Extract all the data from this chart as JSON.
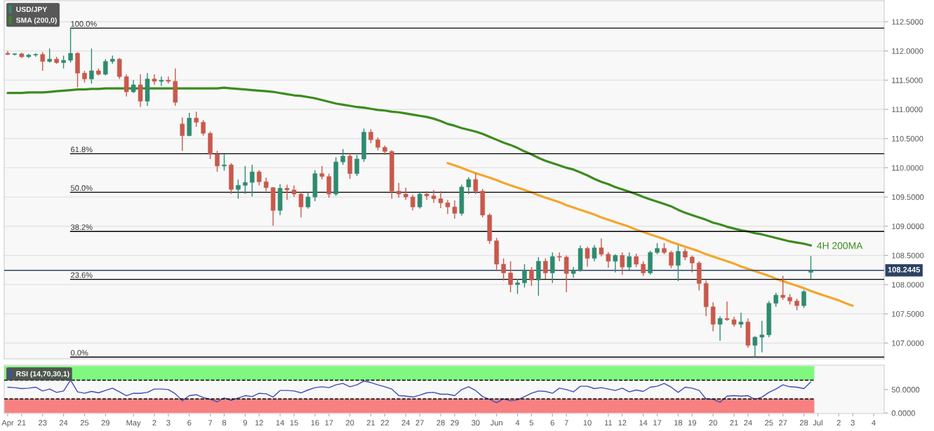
{
  "chart_data": [
    {
      "type": "candlestick",
      "legend": "top left",
      "grid": "y",
      "categories": [
        null,
        null,
        null,
        null,
        null,
        null,
        null,
        null,
        null,
        null,
        null,
        null,
        null,
        null,
        null,
        null,
        null,
        null,
        null,
        null,
        null,
        null,
        null,
        null,
        null,
        null,
        null,
        null,
        null,
        null,
        null,
        null,
        null,
        null,
        null,
        null,
        null,
        null,
        null,
        null,
        null,
        null,
        null,
        null,
        null,
        null,
        null,
        null,
        null,
        null,
        null,
        null,
        null,
        null,
        null,
        null,
        null,
        null,
        null,
        null,
        null,
        null,
        null,
        null,
        null,
        null,
        null,
        null,
        null,
        null,
        null,
        null,
        null,
        null,
        null,
        null,
        null,
        null,
        null,
        null,
        null,
        null,
        null,
        null,
        null,
        null,
        null,
        null,
        null,
        null,
        null,
        null,
        null,
        null,
        null,
        null,
        null,
        null,
        null,
        null,
        null,
        null,
        null,
        null,
        null,
        null,
        null,
        null,
        null,
        null,
        null,
        null,
        null,
        null,
        null,
        null,
        null,
        null,
        null,
        null,
        null,
        null,
        null,
        null,
        null,
        null
      ],
      "ylim": [
        106.73,
        112.86
      ],
      "yticks": [
        {
          "value": 107.0,
          "label": "107.0000"
        },
        {
          "value": 107.5,
          "label": "107.5000"
        },
        {
          "value": 108.0,
          "label": "108.0000"
        },
        {
          "value": 108.5,
          "label": "108.5000"
        },
        {
          "value": 109.0,
          "label": "109.0000"
        },
        {
          "value": 109.5,
          "label": "109.5000"
        },
        {
          "value": 110.0,
          "label": "110.0000"
        },
        {
          "value": 110.5,
          "label": "110.5000"
        },
        {
          "value": 111.0,
          "label": "111.0000"
        },
        {
          "value": 111.5,
          "label": "111.5000"
        },
        {
          "value": 112.0,
          "label": "112.0000"
        },
        {
          "value": 112.5,
          "label": "112.5000"
        }
      ],
      "series": [
        {
          "name": "USD/JPY",
          "type": "candlestick",
          "color": "#2e8b70",
          "ohlc": [
            [
              111.96,
              112.0,
              111.93,
              111.94
            ],
            [
              111.94,
              111.96,
              111.92,
              111.95
            ],
            [
              111.95,
              111.97,
              111.88,
              111.9
            ],
            [
              111.9,
              111.95,
              111.88,
              111.93
            ],
            [
              111.93,
              111.96,
              111.9,
              111.94
            ],
            [
              111.94,
              111.98,
              111.66,
              111.82
            ],
            [
              111.82,
              112.04,
              111.8,
              111.86
            ],
            [
              111.86,
              111.9,
              111.78,
              111.8
            ],
            [
              111.8,
              111.92,
              111.7,
              111.84
            ],
            [
              111.84,
              112.39,
              111.8,
              111.96
            ],
            [
              111.96,
              111.98,
              111.38,
              111.62
            ],
            [
              111.62,
              111.66,
              111.46,
              111.52
            ],
            [
              111.52,
              112.04,
              111.44,
              111.66
            ],
            [
              111.66,
              111.7,
              111.58,
              111.6
            ],
            [
              111.6,
              111.86,
              111.58,
              111.82
            ],
            [
              111.82,
              111.92,
              111.78,
              111.86
            ],
            [
              111.86,
              111.88,
              111.52,
              111.56
            ],
            [
              111.56,
              111.6,
              111.22,
              111.3
            ],
            [
              111.3,
              111.5,
              111.28,
              111.42
            ],
            [
              111.42,
              111.6,
              111.04,
              111.14
            ],
            [
              111.14,
              111.62,
              111.06,
              111.52
            ],
            [
              111.52,
              111.6,
              111.42,
              111.48
            ],
            [
              111.48,
              111.56,
              111.4,
              111.5
            ],
            [
              111.5,
              111.56,
              111.44,
              111.48
            ],
            [
              111.48,
              111.7,
              111.06,
              111.12
            ],
            [
              110.75,
              110.86,
              110.29,
              110.55
            ],
            [
              110.55,
              110.94,
              110.54,
              110.85
            ],
            [
              110.85,
              110.96,
              110.7,
              110.78
            ],
            [
              110.78,
              110.82,
              110.55,
              110.59
            ],
            [
              110.59,
              110.62,
              110.15,
              110.23
            ],
            [
              110.23,
              110.29,
              109.93,
              110.03
            ],
            [
              110.03,
              110.23,
              109.95,
              110.05
            ],
            [
              110.05,
              110.08,
              109.55,
              109.63
            ],
            [
              109.63,
              109.8,
              109.47,
              109.7
            ],
            [
              109.7,
              110.03,
              109.55,
              109.75
            ],
            [
              109.75,
              110.05,
              109.51,
              109.93
            ],
            [
              109.93,
              109.96,
              109.7,
              109.76
            ],
            [
              109.76,
              109.83,
              109.6,
              109.66
            ],
            [
              109.66,
              109.67,
              109.01,
              109.27
            ],
            [
              109.27,
              109.72,
              109.19,
              109.65
            ],
            [
              109.65,
              109.71,
              109.45,
              109.62
            ],
            [
              109.62,
              109.7,
              109.5,
              109.55
            ],
            [
              109.55,
              109.58,
              109.15,
              109.33
            ],
            [
              109.33,
              109.58,
              109.3,
              109.5
            ],
            [
              109.5,
              109.96,
              109.43,
              109.9
            ],
            [
              109.9,
              110.03,
              109.8,
              109.85
            ],
            [
              109.85,
              109.9,
              109.49,
              109.55
            ],
            [
              109.55,
              110.18,
              109.52,
              110.1
            ],
            [
              110.1,
              110.32,
              110.05,
              110.2
            ],
            [
              110.2,
              110.24,
              109.81,
              109.9
            ],
            [
              109.9,
              110.22,
              109.86,
              110.15
            ],
            [
              110.15,
              110.67,
              110.1,
              110.61
            ],
            [
              110.61,
              110.66,
              110.42,
              110.48
            ],
            [
              110.48,
              110.52,
              110.3,
              110.35
            ],
            [
              110.35,
              110.38,
              110.22,
              110.28
            ],
            [
              110.28,
              110.3,
              109.47,
              109.6
            ],
            [
              109.6,
              109.74,
              109.49,
              109.55
            ],
            [
              109.55,
              109.66,
              109.45,
              109.5
            ],
            [
              109.5,
              109.54,
              109.27,
              109.33
            ],
            [
              109.33,
              109.58,
              109.3,
              109.55
            ],
            [
              109.55,
              109.6,
              109.45,
              109.52
            ],
            [
              109.52,
              109.62,
              109.4,
              109.47
            ],
            [
              109.47,
              109.6,
              109.31,
              109.4
            ],
            [
              109.4,
              109.45,
              109.21,
              109.33
            ],
            [
              109.33,
              109.44,
              109.13,
              109.22
            ],
            [
              109.22,
              109.71,
              109.18,
              109.67
            ],
            [
              109.67,
              109.84,
              109.55,
              109.8
            ],
            [
              109.8,
              109.91,
              109.55,
              109.6
            ],
            [
              109.6,
              109.64,
              109.15,
              109.19
            ],
            [
              109.19,
              109.22,
              108.7,
              108.75
            ],
            [
              108.75,
              108.8,
              108.23,
              108.35
            ],
            [
              108.35,
              108.45,
              108.07,
              108.2
            ],
            [
              108.2,
              108.4,
              107.87,
              108.0
            ],
            [
              108.0,
              108.1,
              107.84,
              108.03
            ],
            [
              108.03,
              108.35,
              107.95,
              108.25
            ],
            [
              108.25,
              108.3,
              107.98,
              108.08
            ],
            [
              108.08,
              108.47,
              107.81,
              108.4
            ],
            [
              108.4,
              108.45,
              108.1,
              108.2
            ],
            [
              108.2,
              108.55,
              108.03,
              108.48
            ],
            [
              108.48,
              108.55,
              108.4,
              108.47
            ],
            [
              108.47,
              108.5,
              107.87,
              108.19
            ],
            [
              108.19,
              108.3,
              108.12,
              108.25
            ],
            [
              108.25,
              108.67,
              108.22,
              108.62
            ],
            [
              108.62,
              108.65,
              108.31,
              108.45
            ],
            [
              108.45,
              108.68,
              108.4,
              108.63
            ],
            [
              108.63,
              108.79,
              108.48,
              108.52
            ],
            [
              108.52,
              108.56,
              108.29,
              108.4
            ],
            [
              108.4,
              108.52,
              108.21,
              108.5
            ],
            [
              108.5,
              108.55,
              108.17,
              108.3
            ],
            [
              108.3,
              108.55,
              108.25,
              108.48
            ],
            [
              108.48,
              108.53,
              108.3,
              108.35
            ],
            [
              108.35,
              108.4,
              108.15,
              108.2
            ],
            [
              108.2,
              108.58,
              108.17,
              108.55
            ],
            [
              108.55,
              108.71,
              108.52,
              108.62
            ],
            [
              108.62,
              108.71,
              108.52,
              108.55
            ],
            [
              108.55,
              108.58,
              108.28,
              108.33
            ],
            [
              108.33,
              108.67,
              108.06,
              108.57
            ],
            [
              108.57,
              108.62,
              108.42,
              108.47
            ],
            [
              108.47,
              108.5,
              108.21,
              108.37
            ],
            [
              108.37,
              108.4,
              107.9,
              108.02
            ],
            [
              108.02,
              108.07,
              107.46,
              107.62
            ],
            [
              107.62,
              107.7,
              107.2,
              107.32
            ],
            [
              107.32,
              107.46,
              107.04,
              107.42
            ],
            [
              107.42,
              107.71,
              107.38,
              107.4
            ],
            [
              107.4,
              107.45,
              107.28,
              107.32
            ],
            [
              107.32,
              107.52,
              107.26,
              107.36
            ],
            [
              107.36,
              107.42,
              106.92,
              106.96
            ],
            [
              106.96,
              107.12,
              106.76,
              107.1
            ],
            [
              107.1,
              107.38,
              106.84,
              107.14
            ],
            [
              107.14,
              107.72,
              107.1,
              107.68
            ],
            [
              107.68,
              107.86,
              107.62,
              107.82
            ],
            [
              107.82,
              108.15,
              107.74,
              107.78
            ],
            [
              107.78,
              107.84,
              107.66,
              107.72
            ],
            [
              107.72,
              107.76,
              107.56,
              107.64
            ],
            [
              107.64,
              107.91,
              107.6,
              107.88
            ],
            [
              108.21,
              108.49,
              108.1,
              108.24
            ],
            null,
            null,
            null,
            null,
            null,
            null,
            null,
            null,
            null,
            null
          ],
          "colors": [
            "#c8594c",
            "#2e8b70",
            "#c8594c",
            "#2e8b70",
            "#2e8b70",
            "#c8594c",
            "#2e8b70",
            "#c8594c",
            "#2e8b70",
            "#2e8b70",
            "#c8594c",
            "#c8594c",
            "#2e8b70",
            "#c8594c",
            "#2e8b70",
            "#2e8b70",
            "#c8594c",
            "#c8594c",
            "#2e8b70",
            "#c8594c",
            "#2e8b70",
            "#c8594c",
            "#2e8b70",
            "#c8594c",
            "#c8594c",
            "#c8594c",
            "#2e8b70",
            "#c8594c",
            "#c8594c",
            "#c8594c",
            "#c8594c",
            "#2e8b70",
            "#c8594c",
            "#2e8b70",
            "#2e8b70",
            "#2e8b70",
            "#c8594c",
            "#c8594c",
            "#c8594c",
            "#2e8b70",
            "#c8594c",
            "#c8594c",
            "#c8594c",
            "#2e8b70",
            "#2e8b70",
            "#c8594c",
            "#c8594c",
            "#2e8b70",
            "#2e8b70",
            "#c8594c",
            "#2e8b70",
            "#2e8b70",
            "#c8594c",
            "#c8594c",
            "#c8594c",
            "#c8594c",
            "#c8594c",
            "#c8594c",
            "#c8594c",
            "#2e8b70",
            "#c8594c",
            "#c8594c",
            "#c8594c",
            "#c8594c",
            "#c8594c",
            "#2e8b70",
            "#2e8b70",
            "#c8594c",
            "#c8594c",
            "#c8594c",
            "#c8594c",
            "#c8594c",
            "#c8594c",
            "#2e8b70",
            "#2e8b70",
            "#c8594c",
            "#2e8b70",
            "#c8594c",
            "#2e8b70",
            "#c8594c",
            "#c8594c",
            "#2e8b70",
            "#2e8b70",
            "#c8594c",
            "#2e8b70",
            "#c8594c",
            "#c8594c",
            "#2e8b70",
            "#c8594c",
            "#2e8b70",
            "#c8594c",
            "#c8594c",
            "#2e8b70",
            "#2e8b70",
            "#c8594c",
            "#c8594c",
            "#2e8b70",
            "#c8594c",
            "#c8594c",
            "#c8594c",
            "#c8594c",
            "#c8594c",
            "#2e8b70",
            "#c8594c",
            "#c8594c",
            "#2e8b70",
            "#c8594c",
            "#2e8b70",
            "#2e8b70",
            "#2e8b70",
            "#2e8b70",
            "#c8594c",
            "#c8594c",
            "#c8594c",
            "#2e8b70",
            "#2e8b70",
            null,
            null,
            null,
            null,
            null,
            null,
            null,
            null,
            null,
            null
          ]
        },
        {
          "name": "SMA (200,0)",
          "type": "line",
          "color": "#3b8c1e",
          "values": [
            111.28,
            111.28,
            111.28,
            111.29,
            111.29,
            111.29,
            111.3,
            111.31,
            111.32,
            111.33,
            111.34,
            111.34,
            111.35,
            111.35,
            111.36,
            111.36,
            111.36,
            111.36,
            111.36,
            111.36,
            111.36,
            111.36,
            111.36,
            111.36,
            111.36,
            111.36,
            111.36,
            111.36,
            111.36,
            111.36,
            111.36,
            111.37,
            111.36,
            111.35,
            111.34,
            111.33,
            111.32,
            111.31,
            111.3,
            111.28,
            111.26,
            111.24,
            111.23,
            111.21,
            111.19,
            111.16,
            111.13,
            111.1,
            111.08,
            111.06,
            111.04,
            111.03,
            111.01,
            110.99,
            110.98,
            110.96,
            110.95,
            110.93,
            110.91,
            110.89,
            110.87,
            110.84,
            110.8,
            110.75,
            110.72,
            110.68,
            110.65,
            110.62,
            110.58,
            110.53,
            110.48,
            110.43,
            110.39,
            110.34,
            110.28,
            110.23,
            110.17,
            110.12,
            110.08,
            110.04,
            110.0,
            109.97,
            109.92,
            109.87,
            109.81,
            109.76,
            109.72,
            109.67,
            109.63,
            109.59,
            109.55,
            109.5,
            109.46,
            109.42,
            109.38,
            109.34,
            109.28,
            109.23,
            109.19,
            109.15,
            109.11,
            109.06,
            109.03,
            108.99,
            108.96,
            108.93,
            108.91,
            108.88,
            108.86,
            108.83,
            108.8,
            108.77,
            108.74,
            108.72,
            108.7,
            108.67,
            null,
            null,
            null,
            null,
            null,
            null,
            null,
            null,
            null,
            null
          ]
        },
        {
          "type": "line",
          "color": "#f5a52c",
          "values": [
            null,
            null,
            null,
            null,
            null,
            null,
            null,
            null,
            null,
            null,
            null,
            null,
            null,
            null,
            null,
            null,
            null,
            null,
            null,
            null,
            null,
            null,
            null,
            null,
            null,
            null,
            null,
            null,
            null,
            null,
            null,
            null,
            null,
            null,
            null,
            null,
            null,
            null,
            null,
            null,
            null,
            null,
            null,
            null,
            null,
            null,
            null,
            null,
            null,
            null,
            null,
            null,
            null,
            null,
            null,
            null,
            null,
            null,
            null,
            null,
            null,
            null,
            null,
            110.08,
            110.04,
            110.0,
            109.95,
            109.91,
            109.87,
            109.83,
            109.79,
            109.74,
            109.7,
            109.66,
            109.62,
            109.58,
            109.53,
            109.49,
            109.45,
            109.41,
            109.36,
            109.32,
            109.28,
            109.24,
            109.2,
            109.15,
            109.11,
            109.07,
            109.03,
            108.99,
            108.94,
            108.9,
            108.86,
            108.82,
            108.78,
            108.73,
            108.69,
            108.65,
            108.61,
            108.57,
            108.52,
            108.48,
            108.44,
            108.4,
            108.36,
            108.31,
            108.27,
            108.23,
            108.19,
            108.15,
            108.1,
            108.06,
            108.02,
            107.98,
            107.94,
            107.89,
            107.85,
            107.81,
            107.77,
            107.73,
            107.68,
            107.64,
            null,
            null,
            null,
            null
          ]
        }
      ],
      "ref_lines": [
        {
          "axis": "y",
          "value": 112.39
        },
        {
          "axis": "y",
          "value": 110.24
        },
        {
          "axis": "y",
          "value": 109.58
        },
        {
          "axis": "y",
          "value": 108.91
        },
        {
          "axis": "y",
          "value": 108.09
        },
        {
          "axis": "y",
          "value": 106.76
        },
        {
          "axis": "y",
          "value": 108.2445,
          "label": "108.2445",
          "color": "#2d4263"
        }
      ],
      "annotations": [
        {
          "text": "100.0%",
          "y": 112.39
        },
        {
          "text": "61.8%",
          "y": 110.24
        },
        {
          "text": "50.0%",
          "y": 109.58
        },
        {
          "text": "38.2%",
          "y": 108.91
        },
        {
          "text": "23.6%",
          "y": 108.09
        },
        {
          "text": "0.0%",
          "y": 106.76
        },
        "4H 200MA"
      ]
    },
    {
      "type": "line",
      "legend": "top left",
      "categories": [
        "Apr",
        null,
        "21",
        null,
        null,
        "23",
        null,
        null,
        "24",
        null,
        null,
        "25",
        null,
        null,
        "29",
        null,
        null,
        null,
        "May",
        null,
        null,
        "2",
        null,
        "3",
        null,
        null,
        "6",
        null,
        null,
        "7",
        null,
        "8",
        null,
        null,
        "9",
        null,
        "12",
        null,
        null,
        "14",
        null,
        "15",
        null,
        null,
        "16",
        null,
        "17",
        null,
        null,
        "20",
        null,
        null,
        "21",
        null,
        "22",
        null,
        null,
        "24",
        null,
        "27",
        null,
        null,
        "28",
        null,
        "29",
        null,
        null,
        "30",
        null,
        null,
        "Jun",
        null,
        null,
        "4",
        null,
        "5",
        null,
        null,
        "6",
        null,
        "7",
        null,
        null,
        "10",
        null,
        null,
        "11",
        null,
        "12",
        null,
        null,
        "14",
        null,
        "17",
        null,
        null,
        "18",
        null,
        "19",
        null,
        null,
        "20",
        null,
        null,
        "21",
        null,
        "24",
        null,
        null,
        "25",
        null,
        "27",
        null,
        null,
        "28",
        null,
        "Jul",
        null,
        null,
        "2",
        null,
        "3",
        null,
        null,
        "4",
        null
      ],
      "ylim": [
        -1,
        102
      ],
      "yticks": [
        {
          "value": 0,
          "label": "0.0000"
        },
        {
          "value": 50,
          "label": "50.0000"
        }
      ],
      "series": [
        {
          "name": "RSI (14,70,30,1)",
          "color": "#3f4db5",
          "values": [
            55,
            54,
            52,
            53,
            55,
            47,
            51,
            44,
            47,
            70,
            45,
            42,
            46,
            43,
            48,
            53,
            45,
            37,
            42,
            42,
            44,
            51,
            51,
            50,
            41,
            26,
            37,
            39,
            33,
            29,
            24,
            32,
            27,
            32,
            37,
            35,
            42,
            41,
            34,
            48,
            48,
            47,
            43,
            49,
            54,
            56,
            54,
            60,
            63,
            56,
            60,
            68,
            65,
            60,
            56,
            51,
            37,
            36,
            34,
            38,
            43,
            44,
            40,
            40,
            37,
            50,
            56,
            48,
            35,
            29,
            22,
            30,
            26,
            28,
            35,
            42,
            47,
            46,
            42,
            53,
            50,
            45,
            57,
            57,
            52,
            54,
            51,
            48,
            53,
            45,
            49,
            46,
            55,
            57,
            63,
            55,
            44,
            55,
            53,
            48,
            30,
            29,
            23,
            36,
            37,
            36,
            37,
            29,
            34,
            44,
            51,
            60,
            56,
            55,
            52,
            66,
            null,
            null,
            null,
            null,
            null,
            null,
            null,
            null,
            null,
            null
          ]
        }
      ],
      "ref_lines": [
        {
          "axis": "y",
          "value": 70,
          "line_style": "dashed"
        },
        {
          "axis": "y",
          "value": 30,
          "line_style": "dashed"
        }
      ],
      "bands": [
        {
          "axis": "y",
          "from": 70,
          "to": 100,
          "color": "#80f880"
        },
        {
          "axis": "y",
          "from": 0,
          "to": 30,
          "color": "#f88080"
        }
      ]
    }
  ]
}
